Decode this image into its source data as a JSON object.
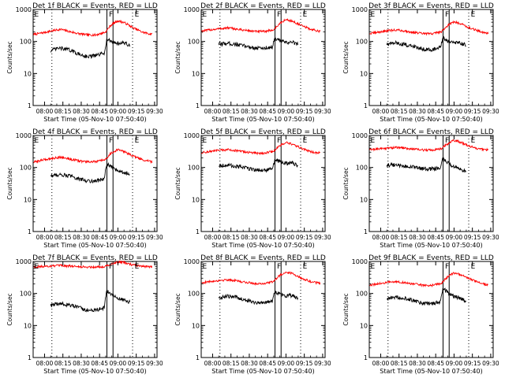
{
  "figure": {
    "colors": {
      "events": "#000000",
      "lld": "#ff0000",
      "axes": "#000000",
      "background": "#ffffff"
    }
  },
  "chart_data": [
    {
      "type": "line",
      "detector": "1f",
      "title": "Det 1f BLACK = Events, RED = LLD",
      "xlabel": "Start Time (05-Nov-10 07:50:40)",
      "ylabel": "Counts/sec",
      "xticks": [
        "08:00",
        "08:15",
        "08:30",
        "08:45",
        "09:00",
        "09:15",
        "09:30"
      ],
      "yticks": [
        "1",
        "10",
        "100",
        "1000"
      ],
      "yscale": "log",
      "ylim": [
        1,
        1000
      ],
      "xlim": [
        "07:50:40",
        "09:32:00"
      ],
      "markers": [
        {
          "label": "E",
          "time": "07:51"
        },
        {
          "label": "F",
          "time": "08:52"
        },
        {
          "label": "E",
          "time": "09:13"
        }
      ],
      "solid_lines": [
        "08:51",
        "08:56"
      ],
      "dotted_lines": [
        "08:06",
        "09:12"
      ],
      "series": [
        {
          "name": "LLD",
          "x": [
            "07:51",
            "07:58",
            "08:05",
            "08:13",
            "08:20",
            "08:28",
            "08:35",
            "08:42",
            "08:50",
            "08:55",
            "09:00",
            "09:05",
            "09:12",
            "09:20",
            "09:28"
          ],
          "values": [
            165,
            185,
            210,
            240,
            205,
            175,
            160,
            160,
            195,
            340,
            440,
            390,
            270,
            195,
            165
          ]
        },
        {
          "name": "Events",
          "x": [
            "08:05",
            "08:12",
            "08:20",
            "08:28",
            "08:35",
            "08:42",
            "08:49",
            "08:51",
            "08:56",
            "09:00",
            "09:05",
            "09:10"
          ],
          "values": [
            52,
            62,
            55,
            40,
            34,
            36,
            43,
            115,
            95,
            88,
            90,
            72
          ]
        }
      ]
    },
    {
      "type": "line",
      "detector": "2f",
      "title": "Det 2f BLACK = Events, RED = LLD",
      "xlabel": "Start Time (05-Nov-10 07:50:40)",
      "ylabel": "Counts/sec",
      "xticks": [
        "08:00",
        "08:15",
        "08:30",
        "08:45",
        "09:00",
        "09:15",
        "09:30"
      ],
      "yticks": [
        "1",
        "10",
        "100",
        "1000"
      ],
      "yscale": "log",
      "ylim": [
        1,
        1000
      ],
      "xlim": [
        "07:50:40",
        "09:32:00"
      ],
      "markers": [
        {
          "label": "E",
          "time": "07:51"
        },
        {
          "label": "F",
          "time": "08:52"
        },
        {
          "label": "E",
          "time": "09:13"
        }
      ],
      "solid_lines": [
        "08:51",
        "08:56"
      ],
      "dotted_lines": [
        "08:06",
        "09:12"
      ],
      "series": [
        {
          "name": "LLD",
          "x": [
            "07:51",
            "07:58",
            "08:05",
            "08:13",
            "08:20",
            "08:28",
            "08:35",
            "08:42",
            "08:50",
            "08:55",
            "09:00",
            "09:05",
            "09:12",
            "09:20",
            "09:28"
          ],
          "values": [
            210,
            230,
            250,
            265,
            240,
            220,
            205,
            205,
            230,
            360,
            480,
            430,
            320,
            240,
            205
          ]
        },
        {
          "name": "Events",
          "x": [
            "08:05",
            "08:12",
            "08:20",
            "08:28",
            "08:35",
            "08:42",
            "08:49",
            "08:51",
            "08:56",
            "09:00",
            "09:05",
            "09:10"
          ],
          "values": [
            82,
            88,
            80,
            70,
            62,
            62,
            68,
            120,
            102,
            92,
            96,
            80
          ]
        }
      ]
    },
    {
      "type": "line",
      "detector": "3f",
      "title": "Det 3f BLACK = Events, RED = LLD",
      "xlabel": "Start Time (05-Nov-10 07:50:40)",
      "ylabel": "Counts/sec",
      "xticks": [
        "08:00",
        "08:15",
        "08:30",
        "08:45",
        "09:00",
        "09:15",
        "09:30"
      ],
      "yticks": [
        "1",
        "10",
        "100",
        "1000"
      ],
      "yscale": "log",
      "ylim": [
        1,
        1000
      ],
      "xlim": [
        "07:50:40",
        "09:32:00"
      ],
      "markers": [
        {
          "label": "E",
          "time": "07:51"
        },
        {
          "label": "F",
          "time": "08:52"
        },
        {
          "label": "E",
          "time": "09:13"
        }
      ],
      "solid_lines": [
        "08:51",
        "08:56"
      ],
      "dotted_lines": [
        "08:06",
        "09:12"
      ],
      "series": [
        {
          "name": "LLD",
          "x": [
            "07:51",
            "07:58",
            "08:05",
            "08:13",
            "08:20",
            "08:28",
            "08:35",
            "08:42",
            "08:50",
            "08:55",
            "09:00",
            "09:05",
            "09:12",
            "09:20",
            "09:28"
          ],
          "values": [
            175,
            195,
            215,
            230,
            210,
            190,
            175,
            175,
            205,
            320,
            410,
            370,
            270,
            210,
            180
          ]
        },
        {
          "name": "Events",
          "x": [
            "08:05",
            "08:12",
            "08:20",
            "08:28",
            "08:35",
            "08:42",
            "08:49",
            "08:51",
            "08:56",
            "09:00",
            "09:05",
            "09:10"
          ],
          "values": [
            82,
            90,
            80,
            68,
            58,
            56,
            64,
            125,
            100,
            88,
            92,
            75
          ]
        }
      ]
    },
    {
      "type": "line",
      "detector": "4f",
      "title": "Det 4f BLACK = Events, RED = LLD",
      "xlabel": "Start Time (05-Nov-10 07:50:40)",
      "ylabel": "Counts/sec",
      "xticks": [
        "08:00",
        "08:15",
        "08:30",
        "08:45",
        "09:00",
        "09:15",
        "09:30"
      ],
      "yticks": [
        "1",
        "10",
        "100",
        "1000"
      ],
      "yscale": "log",
      "ylim": [
        1,
        1000
      ],
      "xlim": [
        "07:50:40",
        "09:32:00"
      ],
      "markers": [
        {
          "label": "E",
          "time": "07:51"
        },
        {
          "label": "F",
          "time": "08:52"
        },
        {
          "label": "E",
          "time": "09:13"
        }
      ],
      "solid_lines": [
        "08:51",
        "08:56"
      ],
      "dotted_lines": [
        "08:06",
        "09:12"
      ],
      "series": [
        {
          "name": "LLD",
          "x": [
            "07:51",
            "07:58",
            "08:05",
            "08:13",
            "08:20",
            "08:28",
            "08:35",
            "08:42",
            "08:50",
            "08:55",
            "09:00",
            "09:05",
            "09:12",
            "09:20",
            "09:28"
          ],
          "values": [
            145,
            170,
            190,
            210,
            185,
            160,
            150,
            150,
            175,
            290,
            360,
            310,
            230,
            175,
            150
          ]
        },
        {
          "name": "Events",
          "x": [
            "08:05",
            "08:12",
            "08:20",
            "08:28",
            "08:35",
            "08:42",
            "08:49",
            "08:51",
            "08:56",
            "09:00",
            "09:05",
            "09:10"
          ],
          "values": [
            55,
            60,
            55,
            44,
            38,
            38,
            44,
            125,
            95,
            80,
            72,
            60
          ]
        }
      ]
    },
    {
      "type": "line",
      "detector": "5f",
      "title": "Det 5f BLACK = Events, RED = LLD",
      "xlabel": "Start Time (05-Nov-10 07:50:40)",
      "ylabel": "Counts/sec",
      "xticks": [
        "08:00",
        "08:15",
        "08:30",
        "08:45",
        "09:00",
        "09:15",
        "09:30"
      ],
      "yticks": [
        "1",
        "10",
        "100",
        "1000"
      ],
      "yscale": "log",
      "ylim": [
        1,
        1000
      ],
      "xlim": [
        "07:50:40",
        "09:32:00"
      ],
      "markers": [
        {
          "label": "E",
          "time": "07:51"
        },
        {
          "label": "F",
          "time": "08:52"
        },
        {
          "label": "E",
          "time": "09:13"
        }
      ],
      "solid_lines": [
        "08:51",
        "08:56"
      ],
      "dotted_lines": [
        "08:06",
        "09:12"
      ],
      "series": [
        {
          "name": "LLD",
          "x": [
            "07:51",
            "07:58",
            "08:05",
            "08:13",
            "08:20",
            "08:28",
            "08:35",
            "08:42",
            "08:50",
            "08:55",
            "09:00",
            "09:05",
            "09:12",
            "09:20",
            "09:28"
          ],
          "values": [
            290,
            315,
            340,
            360,
            330,
            300,
            280,
            280,
            320,
            480,
            600,
            530,
            400,
            310,
            280
          ]
        },
        {
          "name": "Events",
          "x": [
            "08:05",
            "08:12",
            "08:20",
            "08:28",
            "08:35",
            "08:42",
            "08:49",
            "08:51",
            "08:56",
            "09:00",
            "09:05",
            "09:10"
          ],
          "values": [
            115,
            118,
            108,
            95,
            85,
            82,
            90,
            170,
            145,
            135,
            140,
            110
          ]
        }
      ]
    },
    {
      "type": "line",
      "detector": "6f",
      "title": "Det 6f BLACK = Events, RED = LLD",
      "xlabel": "Start Time (05-Nov-10 07:50:40)",
      "ylabel": "Counts/sec",
      "xticks": [
        "08:00",
        "08:15",
        "08:30",
        "08:45",
        "09:00",
        "09:15",
        "09:30"
      ],
      "yticks": [
        "1",
        "10",
        "100",
        "1000"
      ],
      "yscale": "log",
      "ylim": [
        1,
        1000
      ],
      "xlim": [
        "07:50:40",
        "09:32:00"
      ],
      "markers": [
        {
          "label": "E",
          "time": "07:51"
        },
        {
          "label": "F",
          "time": "08:52"
        },
        {
          "label": "E",
          "time": "09:13"
        }
      ],
      "solid_lines": [
        "08:51",
        "08:56"
      ],
      "dotted_lines": [
        "08:06",
        "09:12"
      ],
      "series": [
        {
          "name": "LLD",
          "x": [
            "07:51",
            "07:58",
            "08:05",
            "08:13",
            "08:20",
            "08:28",
            "08:35",
            "08:42",
            "08:50",
            "08:55",
            "09:00",
            "09:05",
            "09:12",
            "09:20",
            "09:28"
          ],
          "values": [
            360,
            380,
            400,
            420,
            400,
            370,
            350,
            350,
            390,
            560,
            700,
            620,
            470,
            380,
            350
          ]
        },
        {
          "name": "Events",
          "x": [
            "08:05",
            "08:12",
            "08:20",
            "08:28",
            "08:35",
            "08:42",
            "08:49",
            "08:51",
            "08:56",
            "09:00",
            "09:05",
            "09:10"
          ],
          "values": [
            120,
            118,
            110,
            100,
            90,
            90,
            98,
            190,
            130,
            100,
            90,
            70
          ]
        }
      ]
    },
    {
      "type": "line",
      "detector": "7f",
      "title": "Det 7f BLACK = Events, RED = LLD",
      "xlabel": "Start Time (05-Nov-10 07:50:40)",
      "ylabel": "Counts/sec",
      "xticks": [
        "08:00",
        "08:15",
        "08:30",
        "08:45",
        "09:00",
        "09:15",
        "09:30"
      ],
      "yticks": [
        "1",
        "10",
        "100",
        "1000"
      ],
      "yscale": "log",
      "ylim": [
        1,
        1000
      ],
      "xlim": [
        "07:50:40",
        "09:32:00"
      ],
      "markers": [
        {
          "label": "E",
          "time": "07:51"
        },
        {
          "label": "F",
          "time": "08:52"
        },
        {
          "label": "E",
          "time": "09:13"
        }
      ],
      "solid_lines": [
        "08:51",
        "08:56"
      ],
      "dotted_lines": [
        "08:06",
        "09:12"
      ],
      "series": [
        {
          "name": "LLD",
          "x": [
            "07:51",
            "07:58",
            "08:05",
            "08:13",
            "08:20",
            "08:28",
            "08:35",
            "08:42",
            "08:50",
            "08:55",
            "09:00",
            "09:05",
            "09:12",
            "09:20",
            "09:28"
          ],
          "values": [
            680,
            700,
            720,
            740,
            720,
            690,
            670,
            670,
            700,
            850,
            960,
            920,
            780,
            700,
            670
          ]
        },
        {
          "name": "Events",
          "x": [
            "08:05",
            "08:12",
            "08:20",
            "08:28",
            "08:35",
            "08:42",
            "08:49",
            "08:51",
            "08:56",
            "09:00",
            "09:05",
            "09:10"
          ],
          "values": [
            42,
            48,
            44,
            36,
            30,
            30,
            36,
            120,
            85,
            70,
            62,
            52
          ]
        }
      ]
    },
    {
      "type": "line",
      "detector": "8f",
      "title": "Det 8f BLACK = Events, RED = LLD",
      "xlabel": "Start Time (05-Nov-10 07:50:40)",
      "ylabel": "Counts/sec",
      "xticks": [
        "08:00",
        "08:15",
        "08:30",
        "08:45",
        "09:00",
        "09:15",
        "09:30"
      ],
      "yticks": [
        "1",
        "10",
        "100",
        "1000"
      ],
      "yscale": "log",
      "ylim": [
        1,
        1000
      ],
      "xlim": [
        "07:50:40",
        "09:32:00"
      ],
      "markers": [
        {
          "label": "E",
          "time": "07:51"
        },
        {
          "label": "F",
          "time": "08:52"
        },
        {
          "label": "E",
          "time": "09:13"
        }
      ],
      "solid_lines": [
        "08:51",
        "08:56"
      ],
      "dotted_lines": [
        "08:06",
        "09:12"
      ],
      "series": [
        {
          "name": "LLD",
          "x": [
            "07:51",
            "07:58",
            "08:05",
            "08:13",
            "08:20",
            "08:28",
            "08:35",
            "08:42",
            "08:50",
            "08:55",
            "09:00",
            "09:05",
            "09:12",
            "09:20",
            "09:28"
          ],
          "values": [
            215,
            235,
            255,
            270,
            245,
            220,
            205,
            205,
            235,
            370,
            470,
            420,
            310,
            235,
            205
          ]
        },
        {
          "name": "Events",
          "x": [
            "08:05",
            "08:12",
            "08:20",
            "08:28",
            "08:35",
            "08:42",
            "08:49",
            "08:51",
            "08:56",
            "09:00",
            "09:05",
            "09:10"
          ],
          "values": [
            72,
            82,
            75,
            62,
            52,
            52,
            58,
            115,
            92,
            85,
            88,
            70
          ]
        }
      ]
    },
    {
      "type": "line",
      "detector": "9f",
      "title": "Det 9f BLACK = Events, RED = LLD",
      "xlabel": "Start Time (05-Nov-10 07:50:40)",
      "ylabel": "Counts/sec",
      "xticks": [
        "08:00",
        "08:15",
        "08:30",
        "08:45",
        "09:00",
        "09:15",
        "09:30"
      ],
      "yticks": [
        "1",
        "10",
        "100",
        "1000"
      ],
      "yscale": "log",
      "ylim": [
        1,
        1000
      ],
      "xlim": [
        "07:50:40",
        "09:32:00"
      ],
      "markers": [
        {
          "label": "E",
          "time": "07:51"
        },
        {
          "label": "F",
          "time": "08:52"
        },
        {
          "label": "E",
          "time": "09:13"
        }
      ],
      "solid_lines": [
        "08:51",
        "08:56"
      ],
      "dotted_lines": [
        "08:06",
        "09:12"
      ],
      "series": [
        {
          "name": "LLD",
          "x": [
            "07:51",
            "07:58",
            "08:05",
            "08:13",
            "08:20",
            "08:28",
            "08:35",
            "08:42",
            "08:50",
            "08:55",
            "09:00",
            "09:05",
            "09:12",
            "09:20",
            "09:28"
          ],
          "values": [
            180,
            200,
            220,
            235,
            215,
            195,
            180,
            180,
            210,
            340,
            440,
            390,
            290,
            215,
            185
          ]
        },
        {
          "name": "Events",
          "x": [
            "08:05",
            "08:12",
            "08:20",
            "08:28",
            "08:35",
            "08:42",
            "08:49",
            "08:51",
            "08:56",
            "09:00",
            "09:05",
            "09:10"
          ],
          "values": [
            65,
            78,
            72,
            58,
            48,
            48,
            55,
            140,
            95,
            82,
            72,
            55
          ]
        }
      ]
    }
  ]
}
